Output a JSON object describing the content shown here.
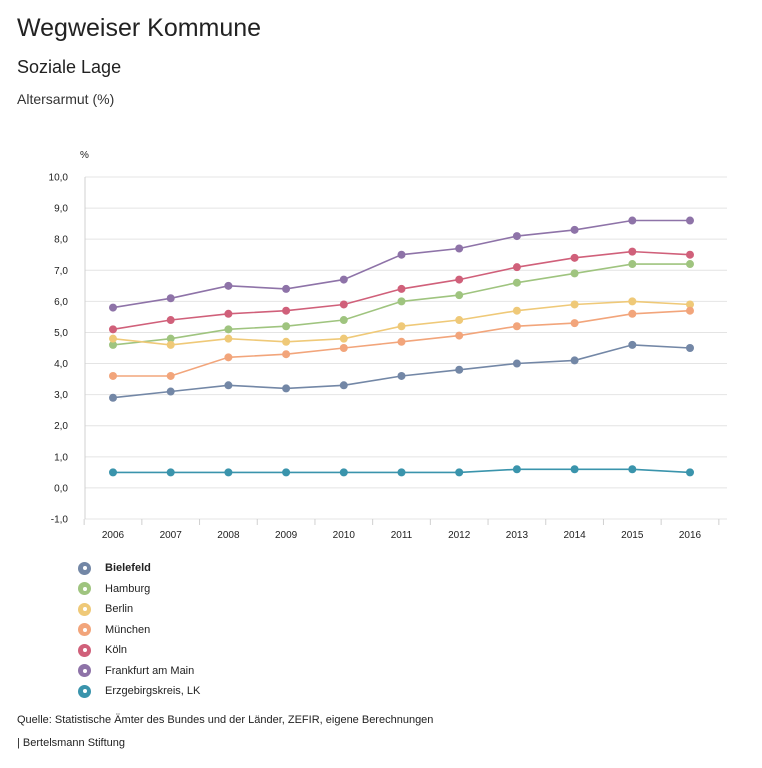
{
  "header": {
    "title": "Wegweiser Kommune",
    "subtitle": "Soziale Lage",
    "indicator": "Altersarmut (%)"
  },
  "chart_data": {
    "type": "line",
    "unit_label": "%",
    "x": [
      "2006",
      "2007",
      "2008",
      "2009",
      "2010",
      "2011",
      "2012",
      "2013",
      "2014",
      "2015",
      "2016"
    ],
    "ylim": [
      -1.0,
      10.0
    ],
    "yticks": [
      "10,0",
      "9,0",
      "8,0",
      "7,0",
      "6,0",
      "5,0",
      "4,0",
      "3,0",
      "2,0",
      "1,0",
      "0,0",
      "-1,0"
    ],
    "ytick_values": [
      10,
      9,
      8,
      7,
      6,
      5,
      4,
      3,
      2,
      1,
      0,
      -1
    ],
    "grid": true,
    "legend_position": "bottom-left",
    "series": [
      {
        "name": "Bielefeld",
        "color": "#7387a6",
        "values": [
          2.9,
          3.1,
          3.3,
          3.2,
          3.3,
          3.6,
          3.8,
          4.0,
          4.1,
          4.6,
          4.5
        ],
        "bold": true
      },
      {
        "name": "Hamburg",
        "color": "#9fc47f",
        "values": [
          4.6,
          4.8,
          5.1,
          5.2,
          5.4,
          6.0,
          6.2,
          6.6,
          6.9,
          7.2,
          7.2
        ]
      },
      {
        "name": "Berlin",
        "color": "#efc978",
        "values": [
          4.8,
          4.6,
          4.8,
          4.7,
          4.8,
          5.2,
          5.4,
          5.7,
          5.9,
          6.0,
          5.9
        ]
      },
      {
        "name": "München",
        "color": "#f2a57b",
        "values": [
          3.6,
          3.6,
          4.2,
          4.3,
          4.5,
          4.7,
          4.9,
          5.2,
          5.3,
          5.6,
          5.7
        ]
      },
      {
        "name": "Köln",
        "color": "#d0607a",
        "values": [
          5.1,
          5.4,
          5.6,
          5.7,
          5.9,
          6.4,
          6.7,
          7.1,
          7.4,
          7.6,
          7.5
        ]
      },
      {
        "name": "Frankfurt am Main",
        "color": "#8e73a8",
        "values": [
          5.8,
          6.1,
          6.5,
          6.4,
          6.7,
          7.5,
          7.7,
          8.1,
          8.3,
          8.6,
          8.6
        ]
      },
      {
        "name": "Erzgebirgskreis, LK",
        "color": "#3a94ac",
        "values": [
          0.5,
          0.5,
          0.5,
          0.5,
          0.5,
          0.5,
          0.5,
          0.6,
          0.6,
          0.6,
          0.5
        ]
      }
    ]
  },
  "footer": {
    "source": "Quelle: Statistische Ämter des Bundes und der Länder, ZEFIR, eigene Berechnungen",
    "brand": "| Bertelsmann Stiftung"
  }
}
